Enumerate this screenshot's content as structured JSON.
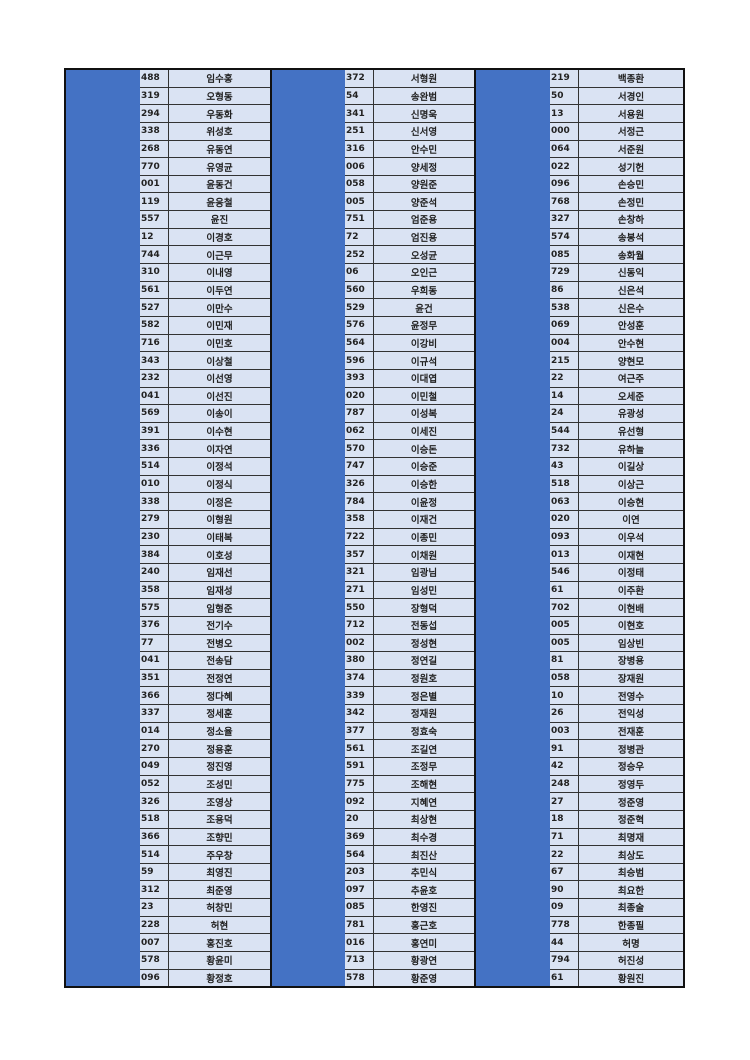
{
  "colors": {
    "redaction": "#4472c4",
    "cell": "#dae3f3",
    "border": "#111111"
  },
  "groups": [
    {
      "rows": [
        [
          "488",
          "임수홍"
        ],
        [
          "319",
          "오형동"
        ],
        [
          "294",
          "우동화"
        ],
        [
          "338",
          "위성호"
        ],
        [
          "268",
          "유동연"
        ],
        [
          "770",
          "유영균"
        ],
        [
          "001",
          "윤동건"
        ],
        [
          "119",
          "윤응철"
        ],
        [
          "557",
          "윤진"
        ],
        [
          "12",
          "이경호"
        ],
        [
          "744",
          "이근무"
        ],
        [
          "310",
          "이내영"
        ],
        [
          "561",
          "이두연"
        ],
        [
          "527",
          "이만수"
        ],
        [
          "582",
          "이민재"
        ],
        [
          "716",
          "이민호"
        ],
        [
          "343",
          "이상철"
        ],
        [
          "232",
          "이선영"
        ],
        [
          "041",
          "이선진"
        ],
        [
          "569",
          "이송이"
        ],
        [
          "391",
          "이수현"
        ],
        [
          "336",
          "이자연"
        ],
        [
          "514",
          "이정석"
        ],
        [
          "010",
          "이정식"
        ],
        [
          "338",
          "이정은"
        ],
        [
          "279",
          "이형원"
        ],
        [
          "230",
          "이태복"
        ],
        [
          "384",
          "이호성"
        ],
        [
          "240",
          "임재선"
        ],
        [
          "358",
          "임재성"
        ],
        [
          "575",
          "임형준"
        ],
        [
          "376",
          "전기수"
        ],
        [
          "77",
          "전병오"
        ],
        [
          "041",
          "전송담"
        ],
        [
          "351",
          "전정연"
        ],
        [
          "366",
          "정다혜"
        ],
        [
          "337",
          "정세훈"
        ],
        [
          "014",
          "정소율"
        ],
        [
          "270",
          "정용훈"
        ],
        [
          "049",
          "정진영"
        ],
        [
          "052",
          "조성민"
        ],
        [
          "326",
          "조영상"
        ],
        [
          "518",
          "조용덕"
        ],
        [
          "366",
          "조향민"
        ],
        [
          "514",
          "주우창"
        ],
        [
          "59",
          "최영진"
        ],
        [
          "312",
          "최준영"
        ],
        [
          "23",
          "허창민"
        ],
        [
          "228",
          "허현"
        ],
        [
          "007",
          "홍진호"
        ],
        [
          "578",
          "황윤미"
        ],
        [
          "096",
          "황정호"
        ]
      ]
    },
    {
      "rows": [
        [
          "372",
          "서형원"
        ],
        [
          "54",
          "송완범"
        ],
        [
          "341",
          "신명욱"
        ],
        [
          "251",
          "신서영"
        ],
        [
          "316",
          "안수민"
        ],
        [
          "006",
          "양세정"
        ],
        [
          "058",
          "양원준"
        ],
        [
          "005",
          "양준석"
        ],
        [
          "751",
          "엄준용"
        ],
        [
          "72",
          "엄진용"
        ],
        [
          "252",
          "오성균"
        ],
        [
          "06",
          "오인근"
        ],
        [
          "560",
          "우희동"
        ],
        [
          "529",
          "윤건"
        ],
        [
          "576",
          "윤정무"
        ],
        [
          "564",
          "이강비"
        ],
        [
          "596",
          "이규석"
        ],
        [
          "393",
          "이대엽"
        ],
        [
          "020",
          "이민철"
        ],
        [
          "787",
          "이성복"
        ],
        [
          "062",
          "이세진"
        ],
        [
          "570",
          "이승돈"
        ],
        [
          "747",
          "이승준"
        ],
        [
          "326",
          "이승한"
        ],
        [
          "784",
          "이윤정"
        ],
        [
          "358",
          "이재건"
        ],
        [
          "722",
          "이종민"
        ],
        [
          "357",
          "이채원"
        ],
        [
          "321",
          "임광님"
        ],
        [
          "271",
          "임성민"
        ],
        [
          "550",
          "장형덕"
        ],
        [
          "712",
          "전동섭"
        ],
        [
          "002",
          "정성현"
        ],
        [
          "380",
          "정연길"
        ],
        [
          "374",
          "정원호"
        ],
        [
          "339",
          "정은별"
        ],
        [
          "342",
          "정재원"
        ],
        [
          "377",
          "정효숙"
        ],
        [
          "561",
          "조길연"
        ],
        [
          "591",
          "조정무"
        ],
        [
          "775",
          "조해현"
        ],
        [
          "092",
          "지혜연"
        ],
        [
          "20",
          "최상현"
        ],
        [
          "369",
          "최수경"
        ],
        [
          "564",
          "최진산"
        ],
        [
          "203",
          "추민식"
        ],
        [
          "097",
          "추윤호"
        ],
        [
          "085",
          "한영진"
        ],
        [
          "781",
          "홍근호"
        ],
        [
          "016",
          "홍연미"
        ],
        [
          "713",
          "황광연"
        ],
        [
          "578",
          "황준영"
        ]
      ]
    },
    {
      "rows": [
        [
          "219",
          "백종환"
        ],
        [
          "50",
          "서경인"
        ],
        [
          "13",
          "서용원"
        ],
        [
          "000",
          "서정근"
        ],
        [
          "064",
          "서준원"
        ],
        [
          "022",
          "성기헌"
        ],
        [
          "096",
          "손승민"
        ],
        [
          "768",
          "손정민"
        ],
        [
          "327",
          "손창하"
        ],
        [
          "574",
          "송봉석"
        ],
        [
          "085",
          "송화월"
        ],
        [
          "729",
          "신동익"
        ],
        [
          "86",
          "신은석"
        ],
        [
          "538",
          "신은수"
        ],
        [
          "069",
          "안성훈"
        ],
        [
          "004",
          "안수현"
        ],
        [
          "215",
          "양현모"
        ],
        [
          "22",
          "여근주"
        ],
        [
          "14",
          "오세준"
        ],
        [
          "24",
          "유광성"
        ],
        [
          "544",
          "유선형"
        ],
        [
          "732",
          "유하늘"
        ],
        [
          "43",
          "이길상"
        ],
        [
          "518",
          "이상근"
        ],
        [
          "063",
          "이승현"
        ],
        [
          "020",
          "이연"
        ],
        [
          "093",
          "이우석"
        ],
        [
          "013",
          "이재현"
        ],
        [
          "546",
          "이정태"
        ],
        [
          "61",
          "이주환"
        ],
        [
          "702",
          "이현배"
        ],
        [
          "005",
          "이현호"
        ],
        [
          "005",
          "임상빈"
        ],
        [
          "81",
          "장병용"
        ],
        [
          "058",
          "장재원"
        ],
        [
          "10",
          "전영수"
        ],
        [
          "26",
          "전익성"
        ],
        [
          "003",
          "전재훈"
        ],
        [
          "91",
          "정병관"
        ],
        [
          "42",
          "정승우"
        ],
        [
          "248",
          "정영두"
        ],
        [
          "27",
          "정준영"
        ],
        [
          "18",
          "정준혁"
        ],
        [
          "71",
          "최명재"
        ],
        [
          "22",
          "최상도"
        ],
        [
          "67",
          "최승범"
        ],
        [
          "90",
          "최요한"
        ],
        [
          "09",
          "최종술"
        ],
        [
          "778",
          "한종필"
        ],
        [
          "44",
          "허명"
        ],
        [
          "794",
          "허진성"
        ],
        [
          "61",
          "황원진"
        ]
      ]
    }
  ]
}
